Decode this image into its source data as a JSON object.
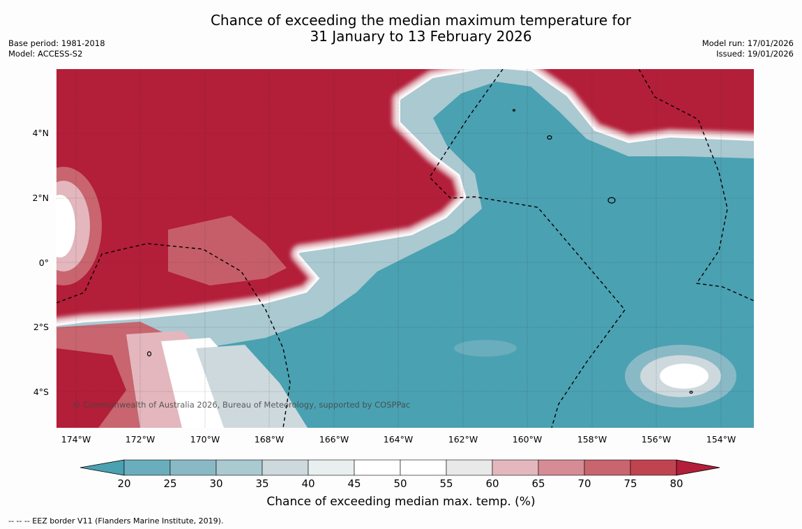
{
  "title": {
    "line1": "Chance of exceeding the median maximum temperature for",
    "line2": "31 January to 13 February 2026"
  },
  "meta_left": {
    "base_period": "Base period: 1981-2018",
    "model": "Model: ACCESS-S2"
  },
  "meta_right": {
    "model_run": "Model run: 17/01/2026",
    "issued": "Issued: 19/01/2026"
  },
  "map": {
    "lat_labels": [
      "4°N",
      "2°N",
      "0°",
      "2°S",
      "4°S"
    ],
    "lon_labels": [
      "174°W",
      "172°W",
      "170°W",
      "168°W",
      "166°W",
      "164°W",
      "162°W",
      "160°W",
      "158°W",
      "156°W",
      "154°W"
    ],
    "copyright": "© Commonwealth of Australia 2026, Bureau of Meteorology, supported by COSPPac",
    "colors": {
      "warm_high": "#b31e39",
      "cool_low": "#4aa1b2"
    }
  },
  "colorbar": {
    "ticks": [
      "20",
      "25",
      "30",
      "35",
      "40",
      "45",
      "50",
      "55",
      "60",
      "65",
      "70",
      "75",
      "80"
    ],
    "colors": [
      "#4aa1b2",
      "#6aadbc",
      "#8ab9c6",
      "#aac9d1",
      "#cdd9dd",
      "#e9efef",
      "#ffffff",
      "#ffffff",
      "#e9e9e9",
      "#e3b7bd",
      "#d68b95",
      "#c8656f",
      "#bf4450",
      "#b31e39"
    ],
    "label": "Chance of exceeding median max. temp. (%)"
  },
  "footer": "--  --  -- EEZ border V11 (Flanders Marine Institute, 2019)."
}
